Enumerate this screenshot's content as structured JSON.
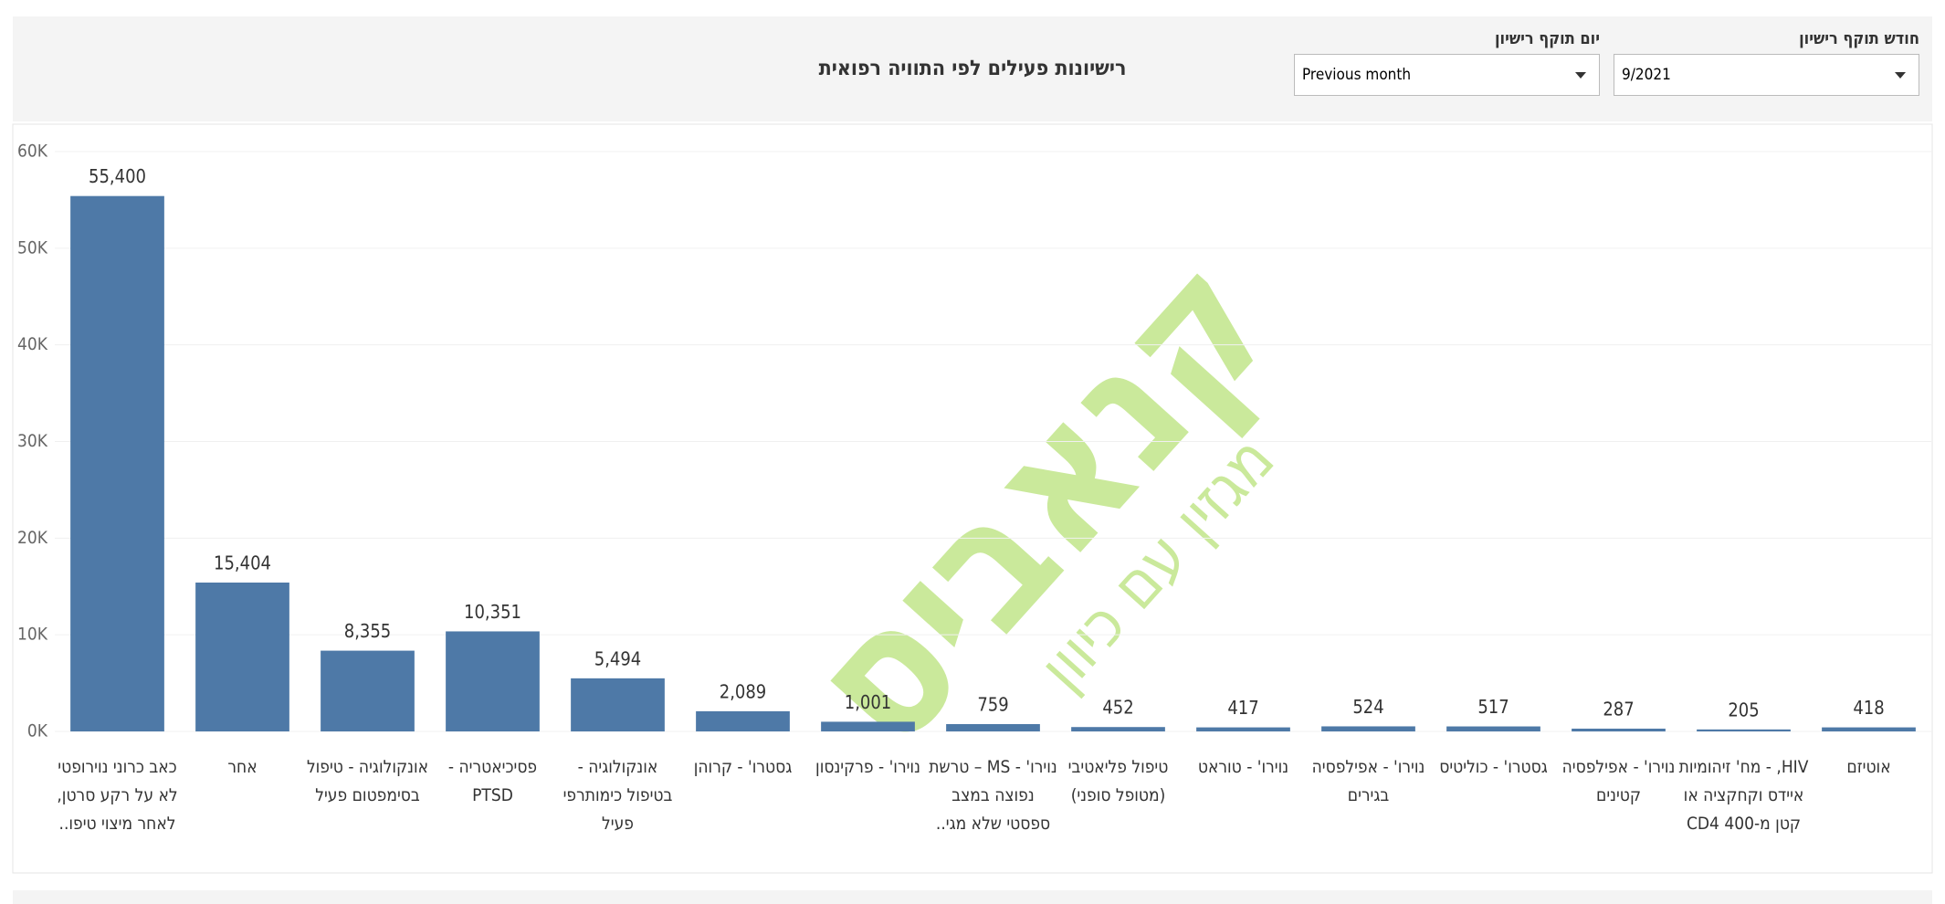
{
  "filters": [
    {
      "label": "חודש תוקף רישיון",
      "value": "9/2021"
    },
    {
      "label": "יום תוקף רישיון",
      "value": "Previous month"
    }
  ],
  "watermark": {
    "brand": "קנאביס",
    "tagline": "מגזין עם כיוון"
  },
  "chart_data": {
    "type": "bar",
    "title": "רישיונות פעילים לפי התוויה רפואית",
    "categories": [
      "כאב כרוני נוירופטי\nלא על רקע סרטן,\nלאחר מיצוי טיפו..",
      "אחר",
      "אונקולוגיה - טיפול\nבסימפטום פעיל",
      "פסיכיאטריה -\nPTSD",
      "אונקולוגיה -\nבטיפול כימותרפי\nפעיל",
      "גסטרו' - קרוהן",
      "נוירו' - פרקינסון",
      "נוירו' - MS – טרשת\nנפוצה במצב\nספסטי שלא מגי..",
      "טיפול פליאטיבי\n(מטופל סופני)",
      "נוירו' - טוראט",
      "נוירו' - אפילפסיה\nבגירים",
      "גסטרו' - כוליטיס",
      "נוירו' - אפילפסיה\nקטינים",
      "HIV, - מח' זיהומיות\nאיידס וקחקציה או\nקטן מ-400 CD4",
      "אוטיזם"
    ],
    "values": [
      55400,
      15404,
      8355,
      10351,
      5494,
      2089,
      1001,
      759,
      452,
      417,
      524,
      517,
      287,
      205,
      418
    ],
    "value_labels": [
      "55,400",
      "15,404",
      "8,355",
      "10,351",
      "5,494",
      "2,089",
      "1,001",
      "759",
      "452",
      "417",
      "524",
      "517",
      "287",
      "205",
      "418"
    ],
    "color": "#4e79a7",
    "ylim": [
      0,
      60000
    ],
    "yticks": [
      {
        "value": 0,
        "label": "0K"
      },
      {
        "value": 10000,
        "label": "10K"
      },
      {
        "value": 20000,
        "label": "20K"
      },
      {
        "value": 30000,
        "label": "30K"
      },
      {
        "value": 40000,
        "label": "40K"
      },
      {
        "value": 50000,
        "label": "50K"
      },
      {
        "value": 60000,
        "label": "60K"
      }
    ],
    "grid": true
  }
}
